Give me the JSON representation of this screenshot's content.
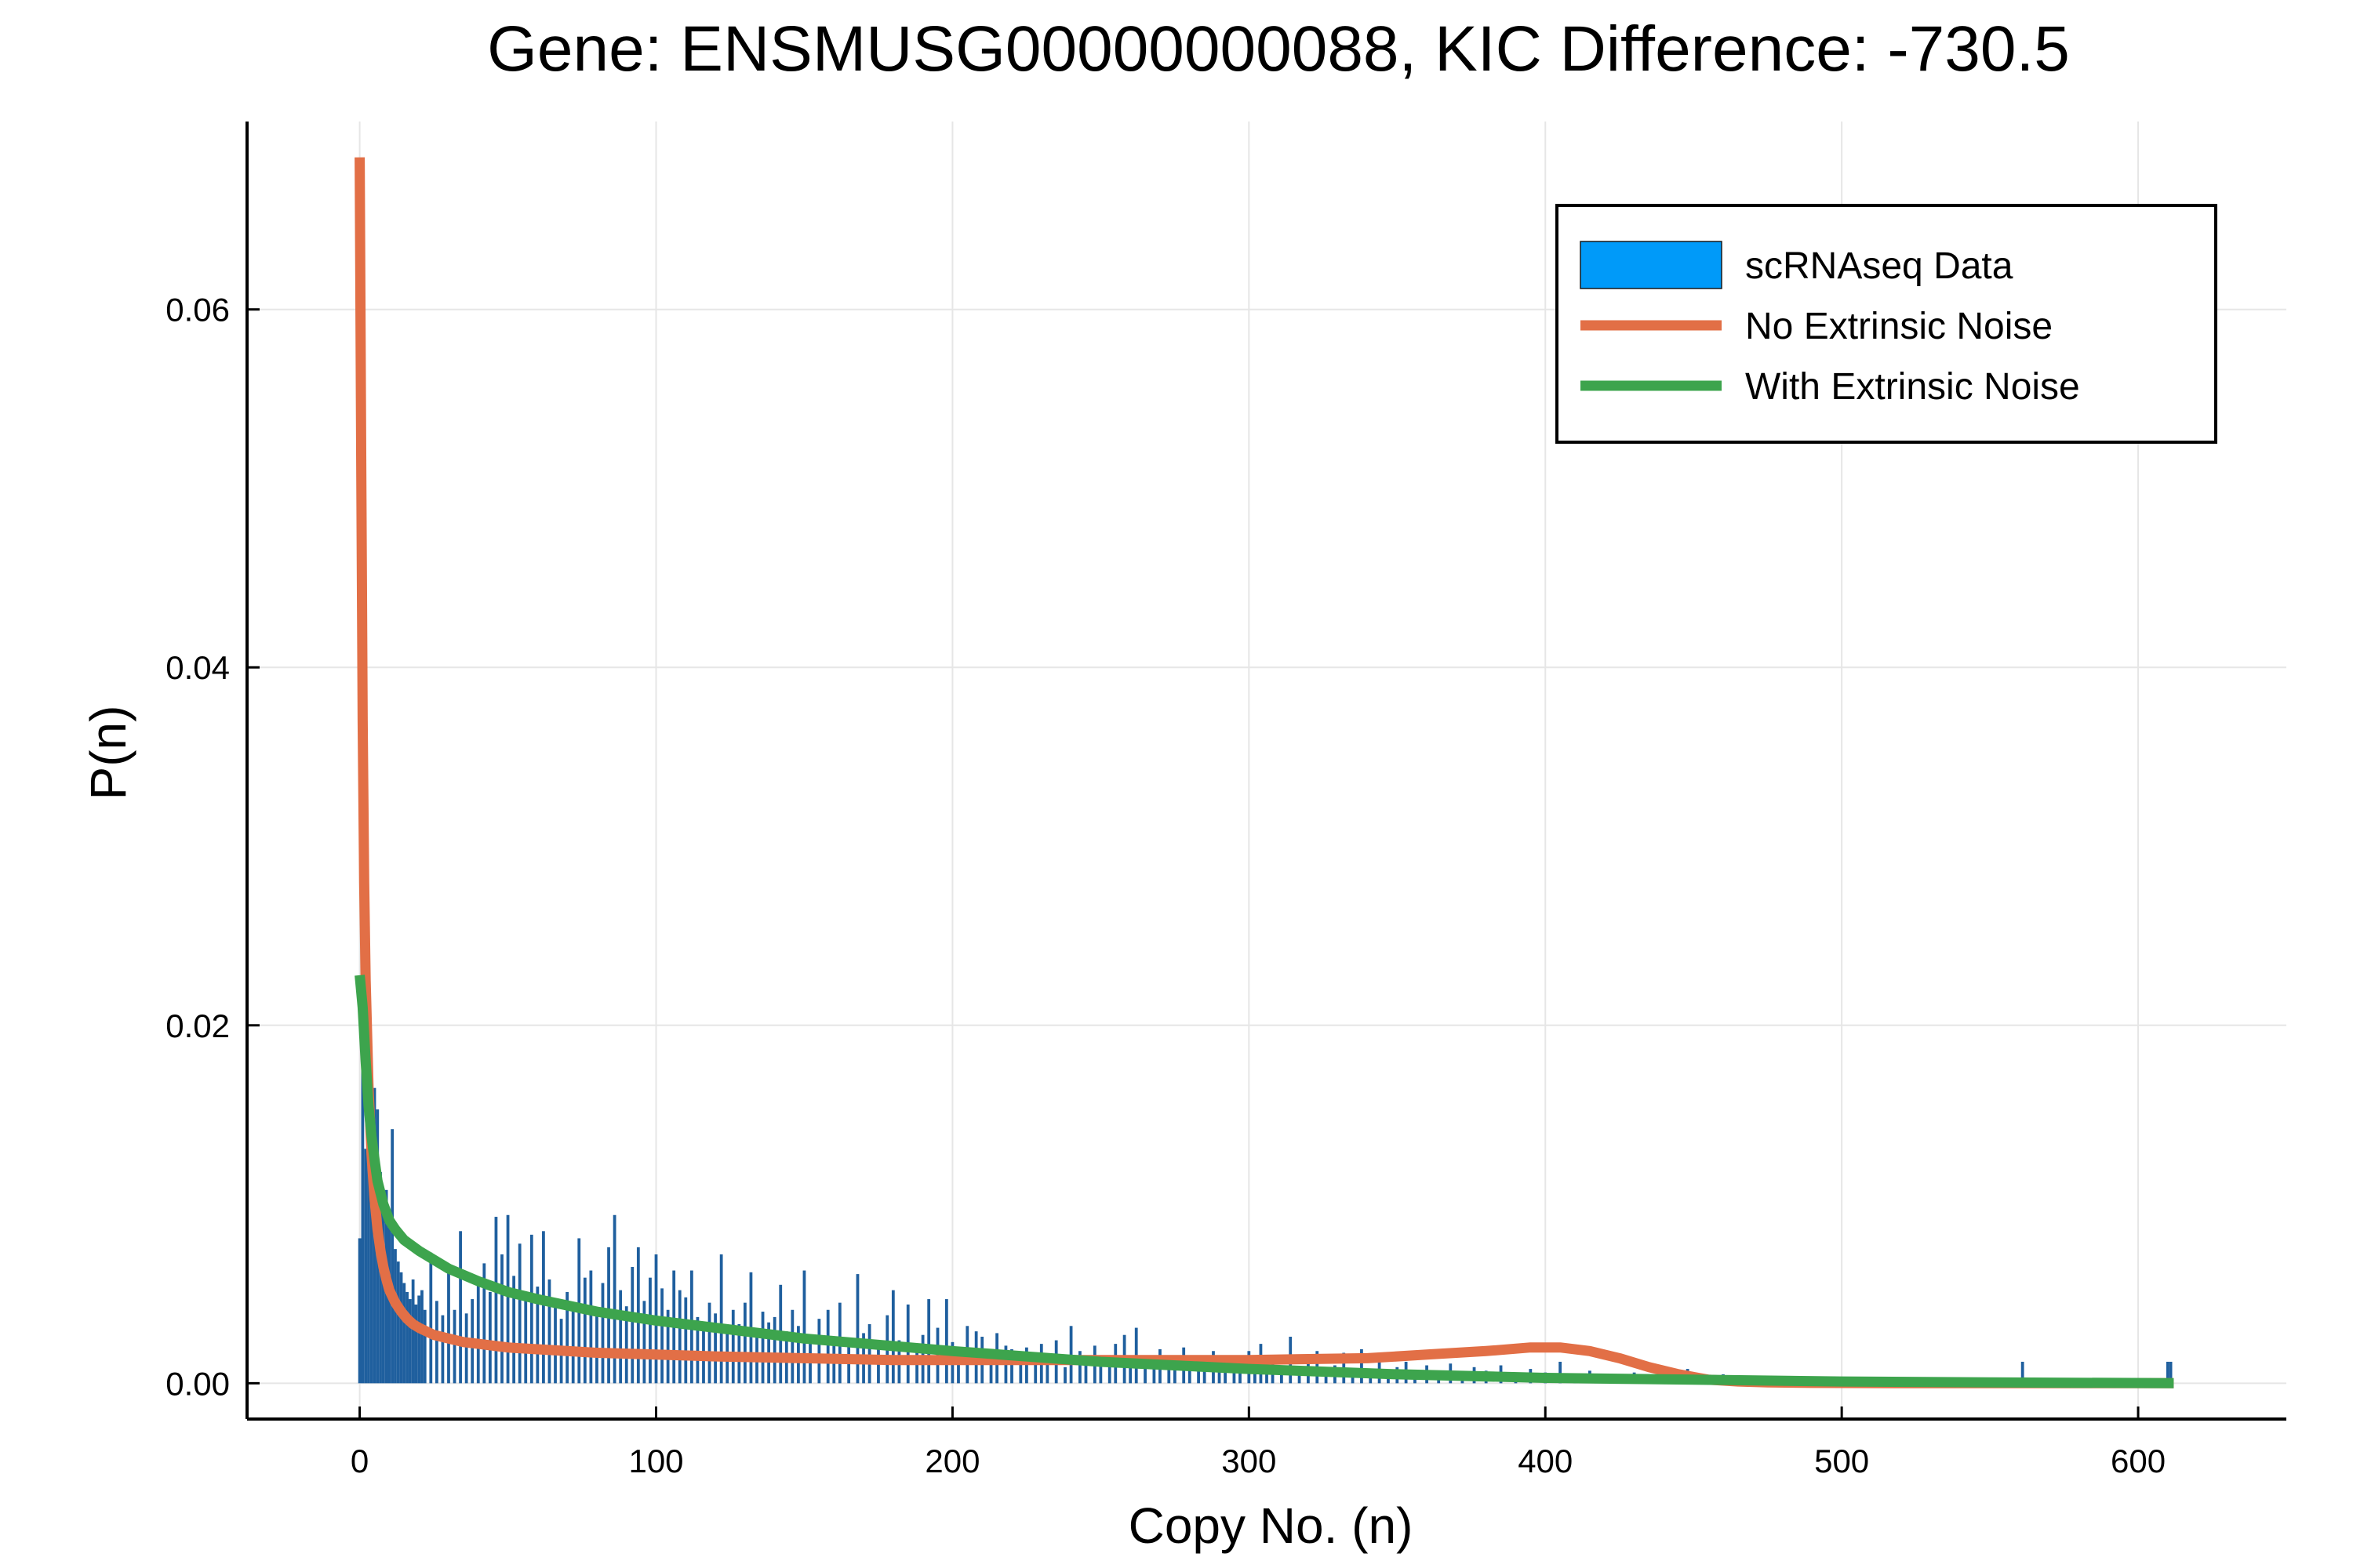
{
  "chart_data": {
    "type": "bar",
    "title": "Gene: ENSMUSG00000000088, KIC Difference: -730.5",
    "xlabel": "Copy No. (n)",
    "ylabel": "P(n)",
    "xlim": [
      -38,
      650
    ],
    "ylim": [
      -0.002,
      0.0705
    ],
    "xticks": [
      0,
      100,
      200,
      300,
      400,
      500,
      600
    ],
    "xtick_labels": [
      "0",
      "100",
      "200",
      "300",
      "400",
      "500",
      "600"
    ],
    "yticks": [
      0.0,
      0.02,
      0.04,
      0.06
    ],
    "ytick_labels": [
      "0.00",
      "0.02",
      "0.04",
      "0.06"
    ],
    "grid": true,
    "legend_position": "top-right",
    "colors": {
      "histogram": "#1f5f9e",
      "histogram_legend": "#009af9",
      "no_extrinsic": "#e26f46",
      "with_extrinsic": "#3da44d",
      "grid": "#e6e6e6"
    },
    "histogram": {
      "name": "scRNAseq Data",
      "bin_width": 1,
      "bins": [
        [
          0,
          0.0081
        ],
        [
          1,
          0.0255
        ],
        [
          2,
          0.0131
        ],
        [
          3,
          0.0142
        ],
        [
          4,
          0.0112
        ],
        [
          5,
          0.0165
        ],
        [
          6,
          0.0153
        ],
        [
          7,
          0.0118
        ],
        [
          8,
          0.0099
        ],
        [
          9,
          0.0108
        ],
        [
          10,
          0.0087
        ],
        [
          11,
          0.0142
        ],
        [
          12,
          0.0075
        ],
        [
          13,
          0.0068
        ],
        [
          14,
          0.0062
        ],
        [
          15,
          0.0056
        ],
        [
          16,
          0.0051
        ],
        [
          17,
          0.0047
        ],
        [
          18,
          0.0058
        ],
        [
          19,
          0.0044
        ],
        [
          20,
          0.0049
        ],
        [
          21,
          0.0052
        ],
        [
          22,
          0.0041
        ],
        [
          24,
          0.0073
        ],
        [
          26,
          0.0046
        ],
        [
          28,
          0.0038
        ],
        [
          30,
          0.0063
        ],
        [
          32,
          0.0041
        ],
        [
          34,
          0.0085
        ],
        [
          36,
          0.0039
        ],
        [
          38,
          0.0047
        ],
        [
          40,
          0.0056
        ],
        [
          42,
          0.0067
        ],
        [
          44,
          0.0051
        ],
        [
          46,
          0.0093
        ],
        [
          48,
          0.0072
        ],
        [
          50,
          0.0094
        ],
        [
          52,
          0.006
        ],
        [
          54,
          0.0078
        ],
        [
          56,
          0.0048
        ],
        [
          58,
          0.0083
        ],
        [
          60,
          0.0054
        ],
        [
          62,
          0.0085
        ],
        [
          64,
          0.0058
        ],
        [
          66,
          0.0047
        ],
        [
          68,
          0.0036
        ],
        [
          70,
          0.0051
        ],
        [
          72,
          0.0042
        ],
        [
          74,
          0.0081
        ],
        [
          76,
          0.0059
        ],
        [
          78,
          0.0063
        ],
        [
          80,
          0.0042
        ],
        [
          82,
          0.0056
        ],
        [
          84,
          0.0076
        ],
        [
          86,
          0.0094
        ],
        [
          88,
          0.0052
        ],
        [
          90,
          0.0043
        ],
        [
          92,
          0.0065
        ],
        [
          94,
          0.0076
        ],
        [
          96,
          0.0046
        ],
        [
          98,
          0.0059
        ],
        [
          100,
          0.0072
        ],
        [
          102,
          0.0053
        ],
        [
          104,
          0.0041
        ],
        [
          106,
          0.0063
        ],
        [
          108,
          0.0052
        ],
        [
          110,
          0.0048
        ],
        [
          112,
          0.0063
        ],
        [
          114,
          0.0037
        ],
        [
          116,
          0.0031
        ],
        [
          118,
          0.0045
        ],
        [
          120,
          0.0039
        ],
        [
          122,
          0.0072
        ],
        [
          124,
          0.0028
        ],
        [
          126,
          0.0041
        ],
        [
          128,
          0.0033
        ],
        [
          130,
          0.0045
        ],
        [
          132,
          0.0062
        ],
        [
          134,
          0.003
        ],
        [
          136,
          0.004
        ],
        [
          138,
          0.0034
        ],
        [
          140,
          0.0037
        ],
        [
          142,
          0.0055
        ],
        [
          144,
          0.0029
        ],
        [
          146,
          0.0041
        ],
        [
          148,
          0.0032
        ],
        [
          150,
          0.0063
        ],
        [
          152,
          0.0027
        ],
        [
          155,
          0.0036
        ],
        [
          158,
          0.0041
        ],
        [
          160,
          0.0022
        ],
        [
          162,
          0.0045
        ],
        [
          165,
          0.0025
        ],
        [
          168,
          0.0061
        ],
        [
          170,
          0.0028
        ],
        [
          172,
          0.0033
        ],
        [
          175,
          0.0021
        ],
        [
          178,
          0.0038
        ],
        [
          180,
          0.0052
        ],
        [
          182,
          0.0024
        ],
        [
          185,
          0.0044
        ],
        [
          188,
          0.0019
        ],
        [
          190,
          0.0027
        ],
        [
          192,
          0.0047
        ],
        [
          195,
          0.0031
        ],
        [
          198,
          0.0047
        ],
        [
          200,
          0.0023
        ],
        [
          202,
          0.0018
        ],
        [
          205,
          0.0032
        ],
        [
          208,
          0.0029
        ],
        [
          210,
          0.0026
        ],
        [
          213,
          0.0016
        ],
        [
          215,
          0.0028
        ],
        [
          218,
          0.0021
        ],
        [
          220,
          0.0019
        ],
        [
          223,
          0.0014
        ],
        [
          225,
          0.002
        ],
        [
          228,
          0.0013
        ],
        [
          230,
          0.0022
        ],
        [
          232,
          0.0011
        ],
        [
          235,
          0.0024
        ],
        [
          238,
          0.0009
        ],
        [
          240,
          0.0032
        ],
        [
          243,
          0.0018
        ],
        [
          245,
          0.0012
        ],
        [
          248,
          0.0021
        ],
        [
          250,
          0.001
        ],
        [
          253,
          0.0015
        ],
        [
          255,
          0.0022
        ],
        [
          258,
          0.0027
        ],
        [
          260,
          0.0009
        ],
        [
          262,
          0.0031
        ],
        [
          265,
          0.0011
        ],
        [
          268,
          0.0008
        ],
        [
          270,
          0.0019
        ],
        [
          273,
          0.001
        ],
        [
          275,
          0.0013
        ],
        [
          278,
          0.002
        ],
        [
          280,
          0.0009
        ],
        [
          283,
          0.0014
        ],
        [
          285,
          0.0011
        ],
        [
          288,
          0.0018
        ],
        [
          290,
          0.0007
        ],
        [
          292,
          0.0013
        ],
        [
          295,
          0.0008
        ],
        [
          297,
          0.0015
        ],
        [
          300,
          0.0018
        ],
        [
          302,
          0.0006
        ],
        [
          304,
          0.0022
        ],
        [
          306,
          0.001
        ],
        [
          308,
          0.0013
        ],
        [
          311,
          0.0007
        ],
        [
          314,
          0.0026
        ],
        [
          317,
          0.0009
        ],
        [
          320,
          0.0016
        ],
        [
          323,
          0.0018
        ],
        [
          326,
          0.0007
        ],
        [
          329,
          0.001
        ],
        [
          332,
          0.0017
        ],
        [
          335,
          0.0006
        ],
        [
          338,
          0.0019
        ],
        [
          341,
          0.0008
        ],
        [
          344,
          0.0012
        ],
        [
          347,
          0.0006
        ],
        [
          350,
          0.0009
        ],
        [
          353,
          0.0012
        ],
        [
          356,
          0.0006
        ],
        [
          360,
          0.001
        ],
        [
          364,
          0.0007
        ],
        [
          368,
          0.0011
        ],
        [
          372,
          0.0005
        ],
        [
          376,
          0.0009
        ],
        [
          380,
          0.0007
        ],
        [
          385,
          0.001
        ],
        [
          390,
          0.0005
        ],
        [
          395,
          0.0008
        ],
        [
          400,
          0.0006
        ],
        [
          405,
          0.0012
        ],
        [
          410,
          0.0005
        ],
        [
          415,
          0.0007
        ],
        [
          420,
          0.0004
        ],
        [
          430,
          0.0006
        ],
        [
          448,
          0.0008
        ],
        [
          460,
          0.0005
        ],
        [
          561,
          0.0012
        ],
        [
          610,
          0.0012
        ],
        [
          611,
          0.0012
        ]
      ]
    },
    "series": [
      {
        "name": "No Extrinsic Noise",
        "x": [
          0,
          0.5,
          1,
          1.5,
          2,
          3,
          4,
          5,
          6,
          7,
          8,
          9,
          10,
          12,
          14,
          16,
          18,
          20,
          25,
          30,
          35,
          40,
          50,
          60,
          70,
          80,
          100,
          120,
          150,
          180,
          200,
          250,
          300,
          340,
          360,
          380,
          395,
          405,
          415,
          425,
          435,
          445,
          455,
          465,
          475,
          490,
          520,
          560,
          612
        ],
        "y": [
          0.0685,
          0.052,
          0.037,
          0.028,
          0.0225,
          0.0165,
          0.0128,
          0.0103,
          0.0086,
          0.0074,
          0.0065,
          0.0058,
          0.0052,
          0.0045,
          0.004,
          0.0036,
          0.0033,
          0.0031,
          0.0027,
          0.0025,
          0.0023,
          0.0022,
          0.002,
          0.0019,
          0.0018,
          0.0017,
          0.0016,
          0.0015,
          0.0014,
          0.0013,
          0.0013,
          0.0013,
          0.0013,
          0.0014,
          0.0016,
          0.0018,
          0.002,
          0.002,
          0.0018,
          0.0014,
          0.0009,
          0.0005,
          0.0002,
          0.0001,
          5e-05,
          2e-05,
          0.0,
          0.0,
          0.0
        ]
      },
      {
        "name": "With Extrinsic Noise",
        "x": [
          0,
          1,
          2,
          3,
          4,
          5,
          6,
          8,
          10,
          12,
          15,
          20,
          30,
          40,
          50,
          60,
          80,
          100,
          120,
          150,
          200,
          250,
          300,
          350,
          400,
          450,
          500,
          550,
          612
        ],
        "y": [
          0.0228,
          0.021,
          0.018,
          0.0155,
          0.0138,
          0.0125,
          0.0113,
          0.01,
          0.0091,
          0.0086,
          0.008,
          0.0074,
          0.0064,
          0.0057,
          0.0051,
          0.0047,
          0.004,
          0.0035,
          0.0031,
          0.0025,
          0.0018,
          0.0012,
          0.0008,
          0.0005,
          0.0003,
          0.0002,
          0.0001,
          5e-05,
          0.0
        ]
      }
    ]
  }
}
